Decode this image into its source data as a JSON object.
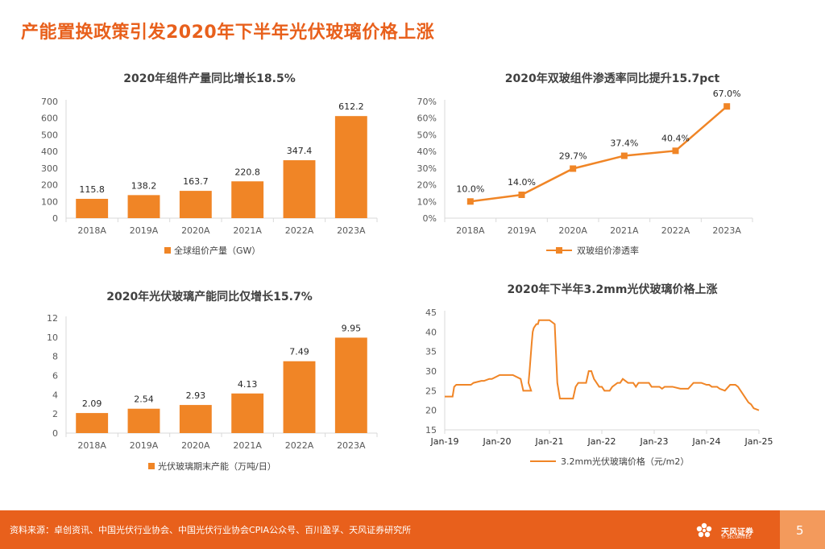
{
  "page": {
    "title": "产能置换政策引发2020年下半年光伏玻璃价格上涨",
    "source": "资料来源：卓创资讯、中国光伏行业协会、中国光伏行业协会CPIA公众号、百川盈孚、天风证券研究所",
    "page_number": "5",
    "logo_text": "天风证券",
    "logo_sub": "TF SECURITIES"
  },
  "colors": {
    "accent": "#E8601C",
    "bar": "#F08526",
    "axis": "#D9D9D9",
    "text": "#595959"
  },
  "chart_data": [
    {
      "id": "c1",
      "type": "bar",
      "title": "2020年组件产量同比增长18.5%",
      "categories": [
        "2018A",
        "2019A",
        "2020A",
        "2021A",
        "2022A",
        "2023A"
      ],
      "values": [
        115.8,
        138.2,
        163.7,
        220.8,
        347.4,
        612.2
      ],
      "value_labels": [
        "115.8",
        "138.2",
        "163.7",
        "220.8",
        "347.4",
        "612.2"
      ],
      "ylim": [
        0,
        700
      ],
      "yticks": [
        0,
        100,
        200,
        300,
        400,
        500,
        600,
        700
      ],
      "ytick_labels": [
        "0",
        "100",
        "200",
        "300",
        "400",
        "500",
        "600",
        "700"
      ],
      "legend": "全球组价产量（GW）"
    },
    {
      "id": "c2",
      "type": "line",
      "title": "2020年双玻组件渗透率同比提升15.7pct",
      "categories": [
        "2018A",
        "2019A",
        "2020A",
        "2021A",
        "2022A",
        "2023A"
      ],
      "values": [
        10.0,
        14.0,
        29.7,
        37.4,
        40.4,
        67.0
      ],
      "value_labels": [
        "10.0%",
        "14.0%",
        "29.7%",
        "37.4%",
        "40.4%",
        "67.0%"
      ],
      "ylim": [
        0,
        70
      ],
      "yticks": [
        0,
        10,
        20,
        30,
        40,
        50,
        60,
        70
      ],
      "ytick_labels": [
        "0%",
        "10%",
        "20%",
        "30%",
        "40%",
        "50%",
        "60%",
        "70%"
      ],
      "legend": "双玻组价渗透率"
    },
    {
      "id": "c3",
      "type": "bar",
      "title": "2020年光伏玻璃产能同比仅增长15.7%",
      "categories": [
        "2018A",
        "2019A",
        "2020A",
        "2021A",
        "2022A",
        "2023A"
      ],
      "values": [
        2.09,
        2.54,
        2.93,
        4.13,
        7.49,
        9.95
      ],
      "value_labels": [
        "2.09",
        "2.54",
        "2.93",
        "4.13",
        "7.49",
        "9.95"
      ],
      "ylim": [
        0,
        12
      ],
      "yticks": [
        0,
        2,
        4,
        6,
        8,
        10,
        12
      ],
      "ytick_labels": [
        "0",
        "2",
        "4",
        "6",
        "8",
        "10",
        "12"
      ],
      "legend": "光伏玻璃期末产能（万吨/日）"
    },
    {
      "id": "c4",
      "type": "line",
      "title": "2020年下半年3.2mm光伏玻璃价格上涨",
      "xlim": [
        2019.0,
        2025.0
      ],
      "xticks": [
        2019,
        2020,
        2021,
        2022,
        2023,
        2024,
        2025
      ],
      "xtick_labels": [
        "Jan-19",
        "Jan-20",
        "Jan-21",
        "Jan-22",
        "Jan-23",
        "Jan-24",
        "Jan-25"
      ],
      "ylim": [
        15,
        45
      ],
      "yticks": [
        15,
        20,
        25,
        30,
        35,
        40,
        45
      ],
      "ytick_labels": [
        "15",
        "20",
        "25",
        "30",
        "35",
        "40",
        "45"
      ],
      "x": [
        2019.0,
        2019.15,
        2019.18,
        2019.22,
        2019.3,
        2019.5,
        2019.55,
        2019.7,
        2019.75,
        2019.85,
        2019.9,
        2020.05,
        2020.1,
        2020.3,
        2020.45,
        2020.5,
        2020.65,
        2020.6,
        2020.62,
        2020.66,
        2020.68,
        2020.7,
        2020.75,
        2020.78,
        2020.8,
        2020.85,
        2020.9,
        2020.95,
        2021.0,
        2021.1,
        2021.15,
        2021.2,
        2021.25,
        2021.3,
        2021.35,
        2021.4,
        2021.45,
        2021.5,
        2021.55,
        2021.6,
        2021.7,
        2021.75,
        2021.8,
        2021.85,
        2021.9,
        2021.95,
        2022.0,
        2022.05,
        2022.1,
        2022.15,
        2022.2,
        2022.3,
        2022.35,
        2022.4,
        2022.5,
        2022.6,
        2022.65,
        2022.7,
        2022.85,
        2022.9,
        2022.95,
        2023.0,
        2023.1,
        2023.15,
        2023.2,
        2023.3,
        2023.35,
        2023.5,
        2023.55,
        2023.65,
        2023.75,
        2023.85,
        2023.9,
        2024.0,
        2024.05,
        2024.1,
        2024.2,
        2024.25,
        2024.35,
        2024.45,
        2024.5,
        2024.55,
        2024.6,
        2024.65,
        2024.7,
        2024.75,
        2024.8,
        2024.85,
        2024.9,
        2025.0
      ],
      "values": [
        23.5,
        23.5,
        26,
        26.5,
        26.5,
        26.5,
        27,
        27.5,
        27.5,
        28,
        28,
        29,
        29,
        29,
        28,
        25,
        25,
        27,
        30,
        37,
        40,
        41,
        42,
        42,
        43,
        43,
        43,
        43,
        43,
        42,
        27,
        23,
        23,
        23,
        23,
        23,
        23,
        26,
        27,
        27,
        27,
        30,
        30,
        28,
        27,
        26,
        26,
        25,
        25,
        25,
        26,
        27,
        27,
        28,
        27,
        27,
        26,
        27,
        27,
        27,
        26,
        26,
        26,
        25.5,
        26,
        26,
        26,
        25.5,
        25.5,
        25.5,
        27,
        27,
        27,
        26.5,
        26.5,
        26,
        26,
        25.5,
        25,
        26.5,
        26.5,
        26.5,
        26,
        25,
        24,
        23,
        22,
        21.5,
        20.5,
        20
      ],
      "legend": "3.2mm光伏玻璃价格（元/m2）"
    }
  ]
}
